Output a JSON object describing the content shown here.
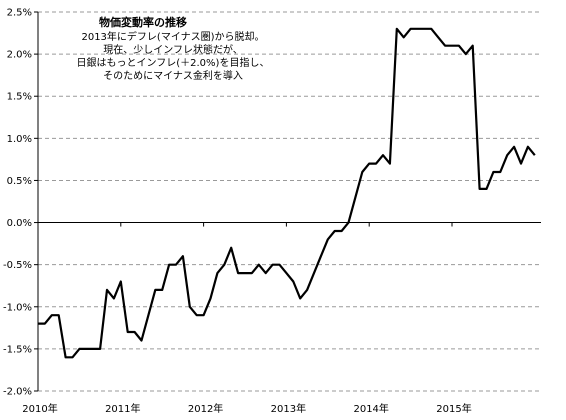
{
  "chart_data": {
    "type": "line",
    "title": "",
    "xlabel": "",
    "ylabel": "",
    "ylim": [
      -0.02,
      0.025
    ],
    "yticks": [
      0.025,
      0.02,
      0.015,
      0.01,
      0.005,
      0.0,
      -0.005,
      -0.01,
      -0.015,
      -0.02
    ],
    "ytick_labels": [
      "2.5%",
      "2.0%",
      "1.5%",
      "1.0%",
      "0.5%",
      "0.0%",
      "-0.5%",
      "-1.0%",
      "-1.5%",
      "-2.0%"
    ],
    "xticks": [
      "2010年",
      "2011年",
      "2012年",
      "2013年",
      "2014年",
      "2015年"
    ],
    "x_start": "2010-01",
    "grid": true,
    "annotation": {
      "title": "物価変動率の推移",
      "lines": [
        "2013年にデフレ(マイナス圏)から脱却。",
        "現在、少しインフレ状態だが、",
        "日銀はもっとインフレ(＋2.0%)を目指し、",
        "そのためにマイナス金利を導入"
      ]
    },
    "series": [
      {
        "color": "#000000",
        "values": [
          -0.012,
          -0.012,
          -0.011,
          -0.011,
          -0.016,
          -0.016,
          -0.015,
          -0.015,
          -0.015,
          -0.015,
          -0.008,
          -0.009,
          -0.007,
          -0.013,
          -0.013,
          -0.014,
          -0.011,
          -0.008,
          -0.008,
          -0.005,
          -0.005,
          -0.004,
          -0.01,
          -0.011,
          -0.011,
          -0.009,
          -0.006,
          -0.005,
          -0.003,
          -0.006,
          -0.006,
          -0.006,
          -0.005,
          -0.006,
          -0.005,
          -0.005,
          -0.006,
          -0.007,
          -0.009,
          -0.008,
          -0.006,
          -0.004,
          -0.002,
          -0.001,
          -0.001,
          0.0,
          0.003,
          0.006,
          0.007,
          0.007,
          0.008,
          0.007,
          0.023,
          0.022,
          0.023,
          0.023,
          0.023,
          0.023,
          0.022,
          0.021,
          0.021,
          0.021,
          0.02,
          0.021,
          0.004,
          0.004,
          0.006,
          0.006,
          0.008,
          0.009,
          0.007,
          0.009,
          0.008
        ]
      }
    ]
  }
}
